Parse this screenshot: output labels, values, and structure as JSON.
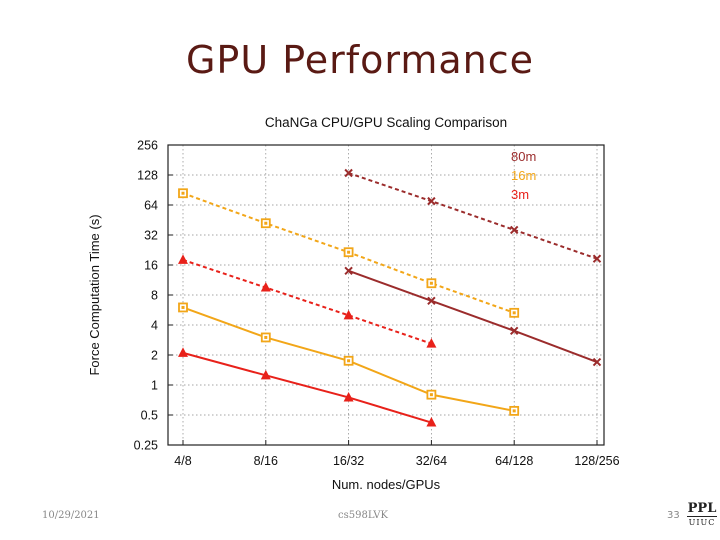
{
  "slide": {
    "title": "GPU Performance",
    "date": "10/29/2021",
    "course": "cs598LVK",
    "page": "33",
    "logo_top": "PPL",
    "logo_bottom": "UIUC"
  },
  "chart_data": {
    "type": "line",
    "title": "ChaNGa CPU/GPU Scaling Comparison",
    "xlabel": "Num. nodes/GPUs",
    "ylabel": "Force Computation Time (s)",
    "categories": [
      "4/8",
      "8/16",
      "16/32",
      "32/64",
      "64/128",
      "128/256"
    ],
    "y_scale": "log2",
    "ylim": [
      0.25,
      256
    ],
    "yticks": [
      0.25,
      0.5,
      1,
      2,
      4,
      8,
      16,
      32,
      64,
      128,
      256
    ],
    "ytick_labels": [
      "0.25",
      "0.5",
      "1",
      "2",
      "4",
      "8",
      "16",
      "32",
      "64",
      "128",
      "256"
    ],
    "grid": true,
    "legend_position": "top-right",
    "legend": [
      {
        "label": "80m",
        "color": "#9b2c2c"
      },
      {
        "label": "16m",
        "color": "#f2a618"
      },
      {
        "label": "3m",
        "color": "#e8211a"
      }
    ],
    "series": [
      {
        "name": "80m CPU",
        "dataset": "80m",
        "style": "dashed",
        "marker": "x",
        "color": "#9b2c2c",
        "values": [
          null,
          null,
          134,
          70,
          36,
          18.5
        ]
      },
      {
        "name": "80m GPU",
        "dataset": "80m",
        "style": "solid",
        "marker": "x",
        "color": "#9b2c2c",
        "values": [
          null,
          null,
          14,
          7,
          3.5,
          1.7
        ]
      },
      {
        "name": "16m CPU",
        "dataset": "16m",
        "style": "dashed",
        "marker": "square",
        "color": "#f2a618",
        "values": [
          84,
          42,
          21.5,
          10.5,
          5.3,
          null
        ]
      },
      {
        "name": "16m GPU",
        "dataset": "16m",
        "style": "solid",
        "marker": "square",
        "color": "#f2a618",
        "values": [
          6,
          3,
          1.75,
          0.8,
          0.55,
          null
        ]
      },
      {
        "name": "3m CPU",
        "dataset": "3m",
        "style": "dashed",
        "marker": "triangle",
        "color": "#e8211a",
        "values": [
          18,
          9.5,
          5,
          2.6,
          null,
          null
        ]
      },
      {
        "name": "3m GPU",
        "dataset": "3m",
        "style": "solid",
        "marker": "triangle",
        "color": "#e8211a",
        "values": [
          2.1,
          1.25,
          0.75,
          0.42,
          null,
          null
        ]
      }
    ]
  }
}
